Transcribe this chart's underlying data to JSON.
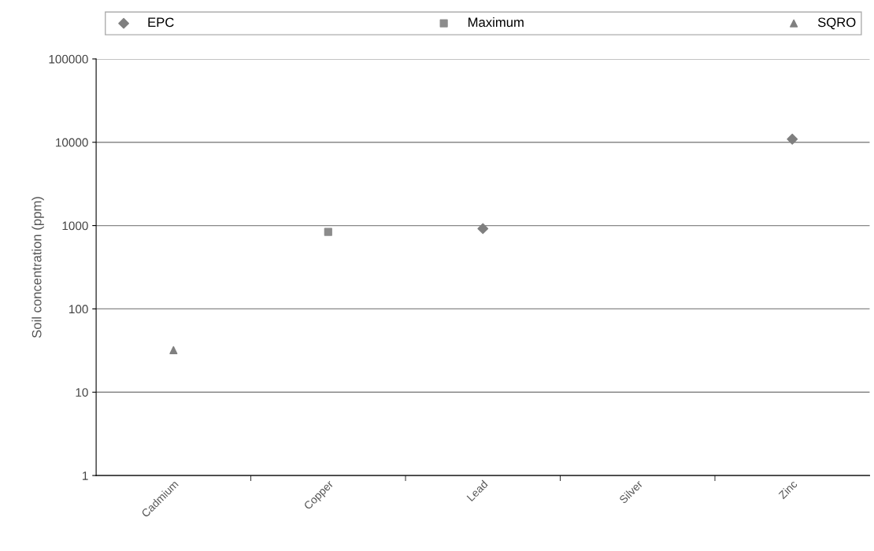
{
  "chart_data": {
    "type": "scatter",
    "ylabel": "Soil concentration (ppm)",
    "categories": [
      "Cadmium",
      "Copper",
      "Lead",
      "Silver",
      "Zinc"
    ],
    "series": [
      {
        "name": "EPC",
        "color": "#7f7f7f",
        "marker": "diamond",
        "values": [
          null,
          null,
          920,
          null,
          10900
        ]
      },
      {
        "name": "Maximum",
        "color": "#8c8c8c",
        "marker": "square",
        "values": [
          null,
          840,
          null,
          null,
          null
        ]
      },
      {
        "name": "SQRO",
        "color": "#808080",
        "marker": "triangle",
        "values": [
          32,
          null,
          null,
          null,
          null
        ]
      }
    ],
    "log": "y",
    "ylim": [
      1,
      100000
    ],
    "yticks": [
      1,
      10,
      100,
      1000,
      10000,
      100000
    ],
    "grid": "y",
    "legend": "top"
  }
}
